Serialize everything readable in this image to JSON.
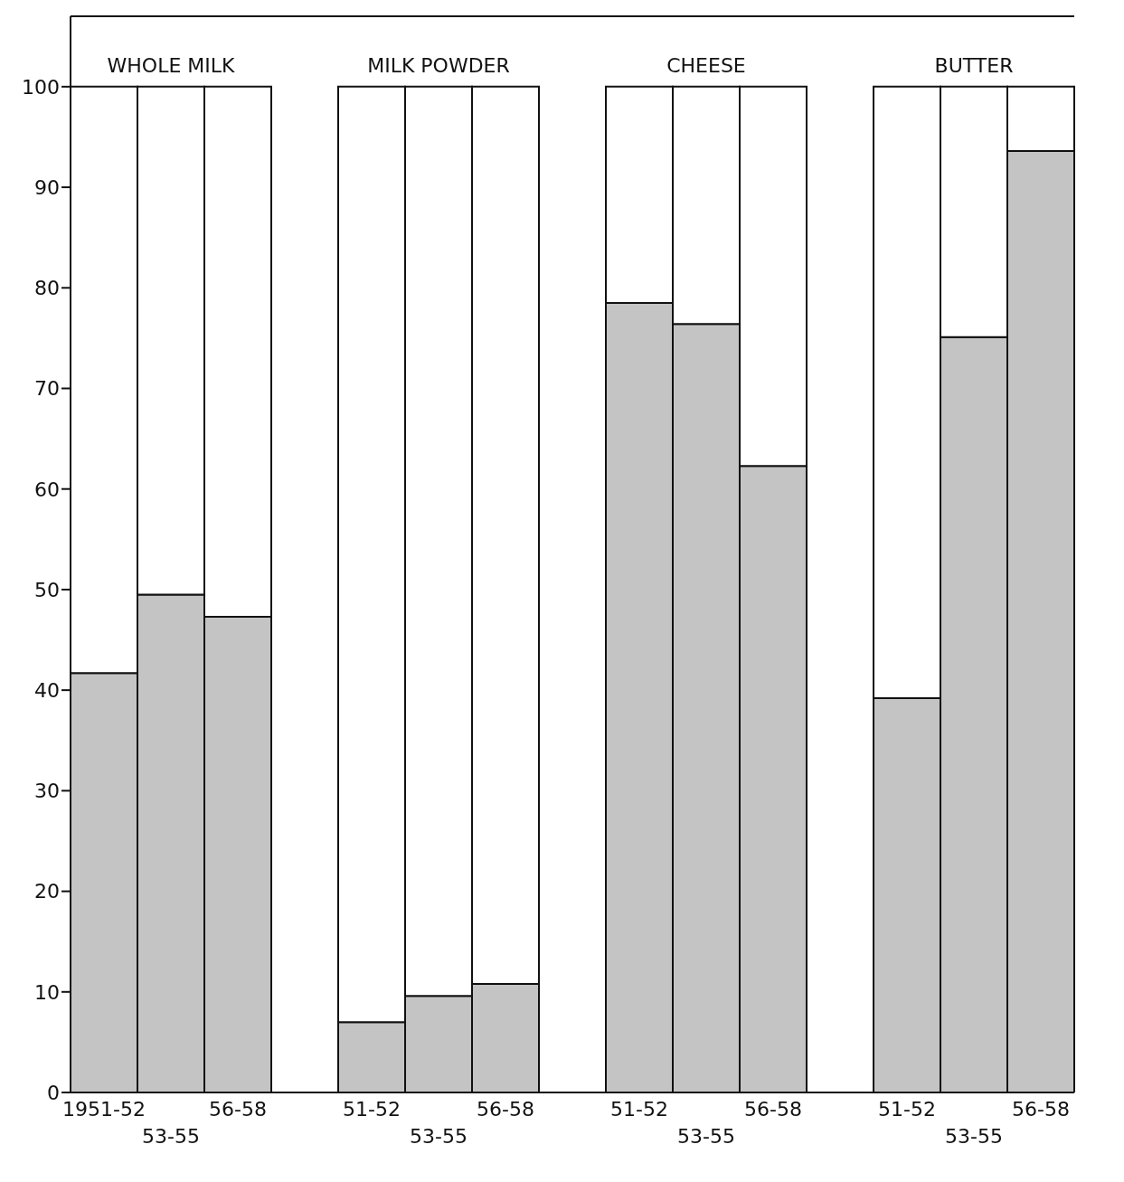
{
  "chart_data": {
    "type": "bar",
    "stacked": true,
    "categories": [
      "1951-52",
      "53-55",
      "56-58",
      null,
      "51-52",
      "53-55",
      "56-58",
      null,
      "51-52",
      "53-55",
      "56-58",
      null,
      "51-52",
      "53-55",
      "56-58"
    ],
    "series": [
      {
        "color": "#c4c4c4",
        "values": [
          41.7,
          49.5,
          47.3,
          null,
          7.0,
          9.6,
          10.8,
          null,
          78.5,
          76.4,
          62.3,
          null,
          39.2,
          75.1,
          93.6
        ]
      },
      {
        "color": "#ffffff",
        "values": [
          58.3,
          50.5,
          52.7,
          null,
          93.0,
          90.4,
          89.2,
          null,
          21.5,
          23.6,
          37.7,
          null,
          60.8,
          24.9,
          6.4
        ]
      }
    ],
    "annotations": [
      "WHOLE MILK",
      "MILK POWDER",
      "CHEESE",
      "BUTTER"
    ],
    "ylim": [
      0,
      107
    ],
    "yticks": [
      0,
      10,
      20,
      30,
      40,
      50,
      60,
      70,
      80,
      90,
      100
    ]
  }
}
